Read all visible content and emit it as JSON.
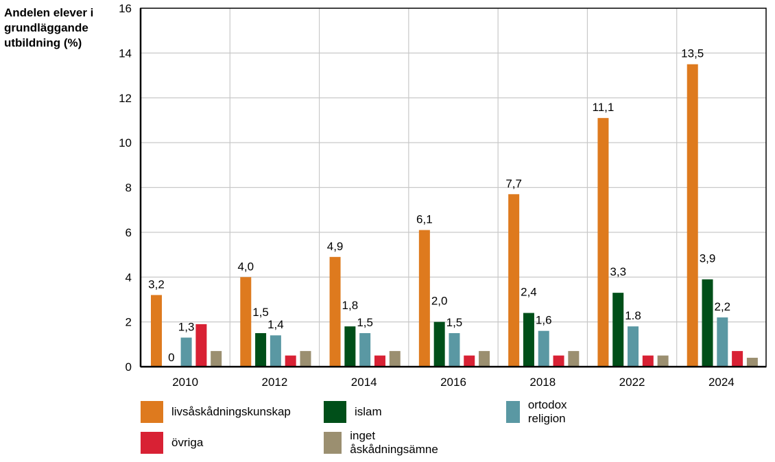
{
  "chart_data": {
    "type": "bar",
    "ylabel": "Andelen elever i grundläggande utbildning (%)",
    "ylim": [
      0,
      16
    ],
    "yticks": [
      "0",
      "2",
      "4",
      "6",
      "8",
      "10",
      "12",
      "14",
      "16"
    ],
    "grid": true,
    "legend_position": "bottom",
    "categories": [
      "2010",
      "2012",
      "2014",
      "2016",
      "2018",
      "2022",
      "2024"
    ],
    "series": [
      {
        "name": "livsåskådningskunskap",
        "color": "#DE7A1E",
        "values": [
          3.2,
          4.0,
          4.9,
          6.1,
          7.7,
          11.1,
          13.5
        ],
        "labels": [
          "3,2",
          "4,0",
          "4,9",
          "6,1",
          "7,7",
          "11,1",
          "13,5"
        ]
      },
      {
        "name": "islam",
        "color": "#004F19",
        "values": [
          0,
          1.5,
          1.8,
          2.0,
          2.4,
          3.3,
          3.9
        ],
        "labels": [
          "0",
          "1,5",
          "1,8",
          "2,0",
          "2,4",
          "3,3",
          "3,9"
        ]
      },
      {
        "name": "ortodox religion",
        "color": "#5A98A3",
        "values": [
          1.3,
          1.4,
          1.5,
          1.5,
          1.6,
          1.8,
          2.2
        ],
        "labels": [
          "1,3",
          "1,4",
          "1,5",
          "1,5",
          "1,6",
          "1.8",
          "2,2"
        ]
      },
      {
        "name": "övriga",
        "color": "#D82134",
        "values": [
          1.9,
          0.5,
          0.5,
          0.5,
          0.5,
          0.5,
          0.7
        ],
        "labels": []
      },
      {
        "name": "inget åskådningsämne",
        "color": "#9B8F70",
        "values": [
          0.7,
          0.7,
          0.7,
          0.7,
          0.7,
          0.5,
          0.4
        ],
        "labels": []
      }
    ]
  }
}
